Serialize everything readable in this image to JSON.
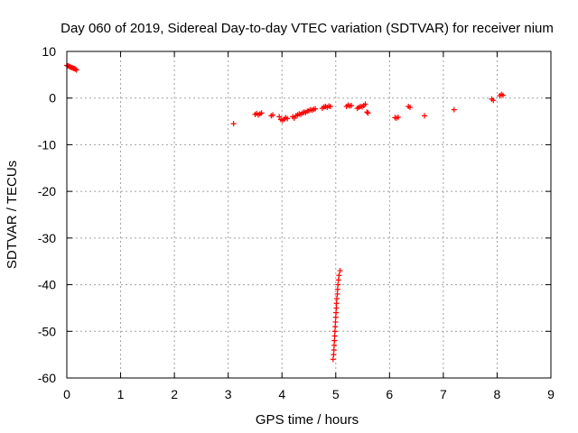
{
  "chart_data": {
    "type": "scatter",
    "title": "Day 060 of 2019, Sidereal Day-to-day VTEC variation (SDTVAR) for receiver nium",
    "xlabel": "GPS time / hours",
    "ylabel": "SDTVAR / TECUs",
    "xlim": [
      0,
      9
    ],
    "ylim": [
      -60,
      10
    ],
    "xticks": [
      0,
      1,
      2,
      3,
      4,
      5,
      6,
      7,
      8,
      9
    ],
    "yticks": [
      -60,
      -50,
      -40,
      -30,
      -20,
      -10,
      0,
      10
    ],
    "grid": true,
    "marker": "plus",
    "series": [
      {
        "name": "SDTVAR",
        "color": "#ff0000",
        "points": [
          [
            0.0,
            7.0
          ],
          [
            0.02,
            6.9
          ],
          [
            0.04,
            6.8
          ],
          [
            0.06,
            6.7
          ],
          [
            0.08,
            6.6
          ],
          [
            0.1,
            6.5
          ],
          [
            0.12,
            6.4
          ],
          [
            0.14,
            6.3
          ],
          [
            0.16,
            6.2
          ],
          [
            0.18,
            6.0
          ],
          [
            3.1,
            -5.5
          ],
          [
            3.5,
            -3.5
          ],
          [
            3.53,
            -3.3
          ],
          [
            3.56,
            -3.6
          ],
          [
            3.59,
            -3.4
          ],
          [
            3.62,
            -3.2
          ],
          [
            3.8,
            -3.8
          ],
          [
            3.83,
            -3.6
          ],
          [
            3.95,
            -4.0
          ],
          [
            3.98,
            -4.6
          ],
          [
            4.01,
            -4.8
          ],
          [
            4.04,
            -4.5
          ],
          [
            4.07,
            -4.2
          ],
          [
            4.1,
            -4.4
          ],
          [
            4.2,
            -4.0
          ],
          [
            4.23,
            -4.3
          ],
          [
            4.26,
            -3.8
          ],
          [
            4.29,
            -3.6
          ],
          [
            4.32,
            -3.4
          ],
          [
            4.35,
            -3.5
          ],
          [
            4.38,
            -3.2
          ],
          [
            4.41,
            -3.0
          ],
          [
            4.44,
            -3.1
          ],
          [
            4.47,
            -2.8
          ],
          [
            4.5,
            -2.7
          ],
          [
            4.53,
            -2.5
          ],
          [
            4.56,
            -2.6
          ],
          [
            4.59,
            -2.4
          ],
          [
            4.62,
            -2.3
          ],
          [
            4.75,
            -2.2
          ],
          [
            4.78,
            -1.9
          ],
          [
            4.81,
            -1.8
          ],
          [
            4.84,
            -2.0
          ],
          [
            4.87,
            -1.7
          ],
          [
            4.9,
            -1.8
          ],
          [
            4.95,
            -56.0
          ],
          [
            4.96,
            -55.0
          ],
          [
            4.965,
            -54.0
          ],
          [
            4.97,
            -53.0
          ],
          [
            4.975,
            -52.0
          ],
          [
            4.98,
            -51.0
          ],
          [
            4.985,
            -50.0
          ],
          [
            4.99,
            -49.0
          ],
          [
            4.995,
            -48.0
          ],
          [
            5.0,
            -47.0
          ],
          [
            5.005,
            -46.0
          ],
          [
            5.01,
            -45.0
          ],
          [
            5.015,
            -44.0
          ],
          [
            5.02,
            -43.0
          ],
          [
            5.03,
            -42.0
          ],
          [
            5.035,
            -41.0
          ],
          [
            5.04,
            -40.0
          ],
          [
            5.05,
            -39.0
          ],
          [
            5.06,
            -38.0
          ],
          [
            5.08,
            -37.0
          ],
          [
            5.2,
            -1.8
          ],
          [
            5.23,
            -1.5
          ],
          [
            5.26,
            -1.7
          ],
          [
            5.29,
            -1.6
          ],
          [
            5.4,
            -2.2
          ],
          [
            5.43,
            -2.0
          ],
          [
            5.46,
            -1.8
          ],
          [
            5.49,
            -1.9
          ],
          [
            5.52,
            -1.6
          ],
          [
            5.55,
            -1.3
          ],
          [
            5.58,
            -3.0
          ],
          [
            5.6,
            -3.2
          ],
          [
            6.1,
            -4.2
          ],
          [
            6.13,
            -4.3
          ],
          [
            6.16,
            -4.1
          ],
          [
            6.35,
            -1.8
          ],
          [
            6.38,
            -2.0
          ],
          [
            6.65,
            -3.8
          ],
          [
            7.2,
            -2.5
          ],
          [
            7.9,
            -0.2
          ],
          [
            7.93,
            -0.5
          ],
          [
            8.05,
            0.5
          ],
          [
            8.08,
            0.8
          ],
          [
            8.11,
            0.6
          ]
        ]
      }
    ]
  }
}
